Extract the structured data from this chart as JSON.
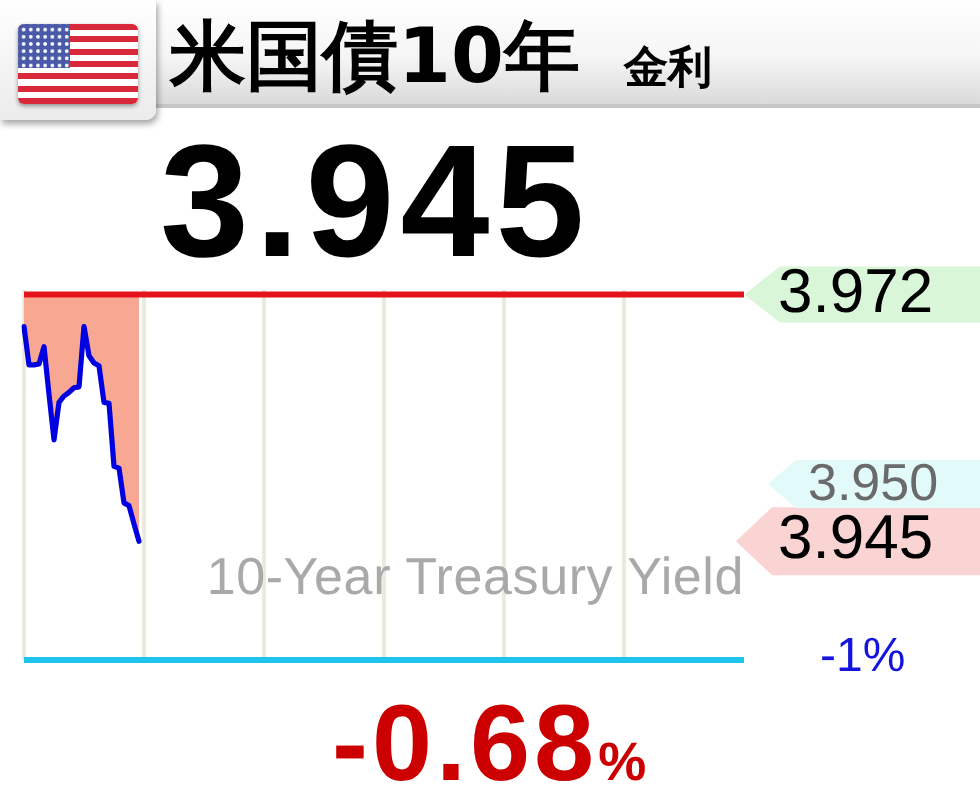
{
  "chart_data": {
    "type": "line",
    "title": "米国債10年",
    "subtitle": "金利",
    "categories": [
      null,
      null,
      null,
      null,
      null,
      null,
      null,
      null,
      null,
      null,
      null,
      null,
      null,
      null,
      null,
      null,
      null,
      null,
      null,
      null,
      null,
      null,
      null,
      null,
      null,
      null,
      null,
      null,
      null,
      null,
      null,
      null,
      null,
      null,
      null,
      null,
      null,
      null,
      null,
      null,
      null,
      null,
      null,
      null,
      null,
      null,
      null,
      null,
      null,
      null,
      null,
      null,
      null,
      null,
      null,
      null,
      null,
      null,
      null,
      null,
      null,
      null,
      null,
      null,
      null,
      null,
      null,
      null,
      null,
      null,
      null,
      null,
      null,
      null,
      null,
      null,
      null,
      null,
      null,
      null,
      null,
      null,
      null,
      null,
      null,
      null,
      null,
      null,
      null,
      null,
      null,
      null,
      null,
      null,
      null,
      null,
      null,
      null,
      null,
      null,
      null,
      null,
      null,
      null,
      null,
      null,
      null,
      null,
      null,
      null,
      null,
      null,
      null,
      null,
      null,
      null,
      null,
      null,
      null,
      null,
      null,
      null,
      null,
      null,
      null,
      null,
      null,
      null,
      null,
      null,
      null,
      null,
      null,
      null,
      null,
      null,
      null,
      null,
      null,
      null,
      null,
      null,
      null,
      null,
      null
    ],
    "series": [
      {
        "color": "#0000e0",
        "values": [
          3.9685,
          3.9643,
          3.9643,
          3.9644,
          3.9663,
          3.9611,
          3.9561,
          3.9602,
          3.9609,
          3.9613,
          3.9618,
          3.9619,
          3.9685,
          3.9653,
          3.9645,
          3.9642,
          3.9602,
          3.9601,
          3.9532,
          3.953,
          3.9492,
          3.9489,
          3.9469,
          3.945,
          null,
          null,
          null,
          null,
          null,
          null,
          null,
          null,
          null,
          null,
          null,
          null,
          null,
          null,
          null,
          null,
          null,
          null,
          null,
          null,
          null,
          null,
          null,
          null,
          null,
          null,
          null,
          null,
          null,
          null,
          null,
          null,
          null,
          null,
          null,
          null,
          null,
          null,
          null,
          null,
          null,
          null,
          null,
          null,
          null,
          null,
          null,
          null,
          null,
          null,
          null,
          null,
          null,
          null,
          null,
          null,
          null,
          null,
          null,
          null,
          null,
          null,
          null,
          null,
          null,
          null,
          null,
          null,
          null,
          null,
          null,
          null,
          null,
          null,
          null,
          null,
          null,
          null,
          null,
          null,
          null,
          null,
          null,
          null,
          null,
          null,
          null,
          null,
          null,
          null,
          null,
          null,
          null,
          null,
          null,
          null,
          null,
          null,
          null,
          null,
          null,
          null,
          null,
          null,
          null,
          null,
          null,
          null,
          null,
          null,
          null,
          null,
          null,
          null,
          null,
          null,
          null,
          null,
          null,
          null,
          null
        ],
        "lower": [
          3.9685,
          3.9643,
          3.9643,
          3.9644,
          3.9663,
          3.9611,
          3.9561,
          3.9602,
          3.9609,
          3.9613,
          3.9618,
          3.9619,
          3.9685,
          3.9653,
          3.9645,
          3.9642,
          3.9602,
          3.9601,
          3.9532,
          3.953,
          3.9492,
          3.9489,
          3.9469,
          3.945,
          null,
          null,
          null,
          null,
          null,
          null,
          null,
          null,
          null,
          null,
          null,
          null,
          null,
          null,
          null,
          null,
          null,
          null,
          null,
          null,
          null,
          null,
          null,
          null,
          null,
          null,
          null,
          null,
          null,
          null,
          null,
          null,
          null,
          null,
          null,
          null,
          null,
          null,
          null,
          null,
          null,
          null,
          null,
          null,
          null,
          null,
          null,
          null,
          null,
          null,
          null,
          null,
          null,
          null,
          null,
          null,
          null,
          null,
          null,
          null,
          null,
          null,
          null,
          null,
          null,
          null,
          null,
          null,
          null,
          null,
          null,
          null,
          null,
          null,
          null,
          null,
          null,
          null,
          null,
          null,
          null,
          null,
          null,
          null,
          null,
          null,
          null,
          null,
          null,
          null,
          null,
          null,
          null,
          null,
          null,
          null,
          null,
          null,
          null,
          null,
          null,
          null,
          null,
          null,
          null,
          null,
          null,
          null,
          null,
          null,
          null,
          null,
          null,
          null,
          null,
          null,
          null,
          null,
          null,
          null,
          null
        ],
        "upper": [
          3.972,
          3.972,
          3.972,
          3.972,
          3.972,
          3.972,
          3.972,
          3.972,
          3.972,
          3.972,
          3.972,
          3.972,
          3.972,
          3.972,
          3.972,
          3.972,
          3.972,
          3.972,
          3.972,
          3.972,
          3.972,
          3.972,
          3.972,
          3.972,
          null,
          null,
          null,
          null,
          null,
          null,
          null,
          null,
          null,
          null,
          null,
          null,
          null,
          null,
          null,
          null,
          null,
          null,
          null,
          null,
          null,
          null,
          null,
          null,
          null,
          null,
          null,
          null,
          null,
          null,
          null,
          null,
          null,
          null,
          null,
          null,
          null,
          null,
          null,
          null,
          null,
          null,
          null,
          null,
          null,
          null,
          null,
          null,
          null,
          null,
          null,
          null,
          null,
          null,
          null,
          null,
          null,
          null,
          null,
          null,
          null,
          null,
          null,
          null,
          null,
          null,
          null,
          null,
          null,
          null,
          null,
          null,
          null,
          null,
          null,
          null,
          null,
          null,
          null,
          null,
          null,
          null,
          null,
          null,
          null,
          null,
          null,
          null,
          null,
          null,
          null,
          null,
          null,
          null,
          null,
          null,
          null,
          null,
          null,
          null,
          null,
          null,
          null,
          null,
          null,
          null,
          null,
          null,
          null,
          null,
          null,
          null,
          null,
          null,
          null,
          null,
          null,
          null,
          null,
          null,
          null
        ]
      }
    ],
    "ylim": [
      3.932,
      3.9725
    ],
    "yticks": [
      3.972,
      3.945
    ],
    "grid": "x",
    "tick_labels": "y",
    "ref_lines": [
      {
        "axis": "y",
        "value": 3.972,
        "color": "#e4141c"
      },
      {
        "axis": "y",
        "value": 3.932,
        "color": "#1cc4ee"
      }
    ],
    "annotations": [
      "3.945",
      "-0.68%",
      "10-Year Treasury Yield",
      "3.950",
      "-1%"
    ]
  }
}
